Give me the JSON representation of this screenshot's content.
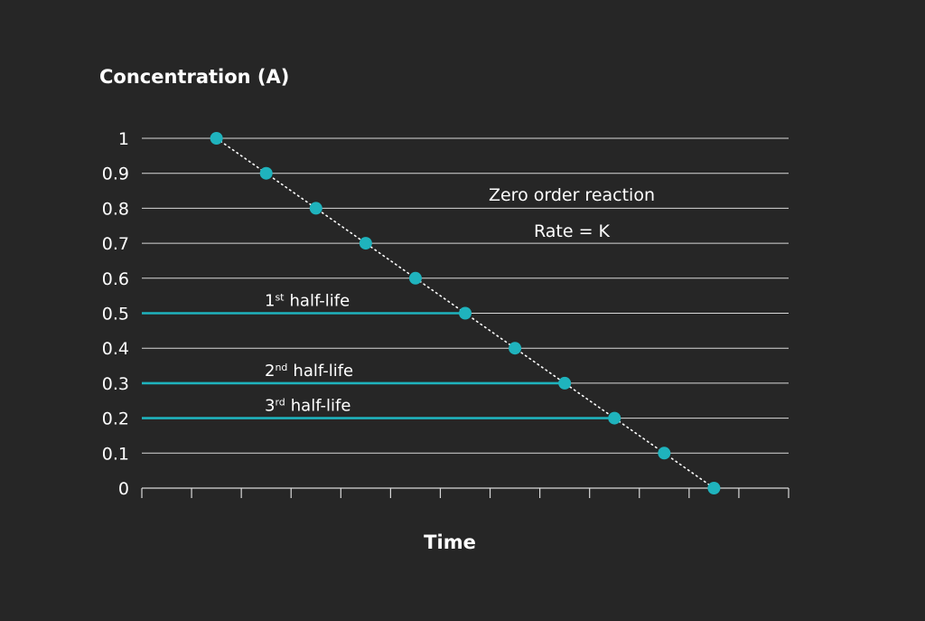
{
  "chart_data": {
    "type": "scatter",
    "title": "",
    "ylabel": "Concentration (A)",
    "xlabel": "Time",
    "ylim": [
      0,
      1
    ],
    "y_ticks": [
      "0",
      "0.1",
      "0.2",
      "0.3",
      "0.4",
      "0.5",
      "0.6",
      "0.7",
      "0.8",
      "0.9",
      "1"
    ],
    "grid": true,
    "series": [
      {
        "x": [
          1.5,
          2.5,
          3.5,
          4.5,
          5.5,
          6.5,
          7.5,
          8.5,
          9.5,
          10.5,
          11.5
        ],
        "y": [
          1.0,
          0.9,
          0.8,
          0.7,
          0.6,
          0.5,
          0.4,
          0.3,
          0.2,
          0.1,
          0.0
        ]
      }
    ],
    "half_life_lines": [
      {
        "y": 0.5,
        "x_end": 6.5,
        "label": "half-life",
        "ordinal": "1",
        "suffix": "st"
      },
      {
        "y": 0.3,
        "x_end": 8.5,
        "label": "half-life",
        "ordinal": "2",
        "suffix": "nd"
      },
      {
        "y": 0.2,
        "x_end": 9.5,
        "label": "half-life",
        "ordinal": "3",
        "suffix": "rd"
      }
    ],
    "annotations": [
      "Zero order reaction",
      "Rate = K"
    ],
    "colors": {
      "background": "#262626",
      "grid": "#d9d9d9",
      "marker": "#1fb3bd",
      "half_life_line": "#1fb3bd",
      "text": "#ffffff"
    }
  }
}
